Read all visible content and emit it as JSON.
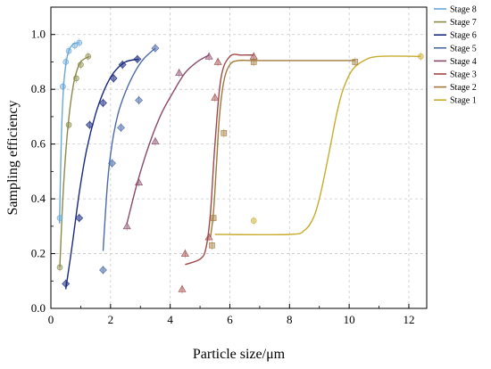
{
  "chart_data": {
    "type": "scatter",
    "xlabel": "Particle size/μm",
    "ylabel": "Sampling efficiency",
    "xlim": [
      0,
      12.6
    ],
    "ylim": [
      0,
      1.1
    ],
    "xticks": [
      0,
      2,
      4,
      6,
      8,
      10,
      12
    ],
    "yticks": [
      0.0,
      0.2,
      0.4,
      0.6,
      0.8,
      1.0
    ],
    "xtick_labels": [
      "0",
      "2",
      "4",
      "6",
      "8",
      "10",
      "12"
    ],
    "ytick_labels": [
      "0.0",
      "0.2",
      "0.4",
      "0.6",
      "0.8",
      "1.0"
    ],
    "grid": true,
    "legend_position": "top-right",
    "series": [
      {
        "name": "Stage 8",
        "color": "#6aa8d8",
        "marker": "circle",
        "x": [
          0.3,
          0.4,
          0.5,
          0.6,
          0.8,
          0.95
        ],
        "y": [
          0.33,
          0.81,
          0.9,
          0.94,
          0.96,
          0.97
        ],
        "curve_x": [
          0.29,
          0.35,
          0.42,
          0.5,
          0.6,
          0.75,
          0.95
        ],
        "curve_y": [
          0.31,
          0.62,
          0.8,
          0.89,
          0.94,
          0.965,
          0.97
        ]
      },
      {
        "name": "Stage 7",
        "color": "#8a8a4a",
        "marker": "circle",
        "x": [
          0.3,
          0.6,
          0.85,
          1.0,
          1.25
        ],
        "y": [
          0.15,
          0.67,
          0.84,
          0.89,
          0.92
        ],
        "curve_x": [
          0.3,
          0.4,
          0.52,
          0.65,
          0.8,
          1.0,
          1.3
        ],
        "curve_y": [
          0.15,
          0.4,
          0.6,
          0.74,
          0.84,
          0.9,
          0.92
        ]
      },
      {
        "name": "Stage 6",
        "color": "#1a2a80",
        "marker": "diamond",
        "x": [
          0.5,
          0.95,
          1.3,
          1.75,
          2.1,
          2.4,
          2.9
        ],
        "y": [
          0.09,
          0.33,
          0.67,
          0.75,
          0.84,
          0.89,
          0.91
        ],
        "curve_x": [
          0.5,
          0.7,
          0.95,
          1.2,
          1.5,
          1.8,
          2.1,
          2.5,
          2.95
        ],
        "curve_y": [
          0.07,
          0.22,
          0.42,
          0.58,
          0.71,
          0.8,
          0.86,
          0.9,
          0.91
        ]
      },
      {
        "name": "Stage 5",
        "color": "#4a6aa8",
        "marker": "diamond",
        "x": [
          1.75,
          2.05,
          2.35,
          2.95,
          3.5
        ],
        "y": [
          0.14,
          0.53,
          0.66,
          0.76,
          0.95
        ],
        "curve_x": [
          1.75,
          1.9,
          2.05,
          2.25,
          2.5,
          2.8,
          3.1,
          3.5
        ],
        "curve_y": [
          0.21,
          0.46,
          0.6,
          0.71,
          0.79,
          0.86,
          0.91,
          0.95
        ]
      },
      {
        "name": "Stage 4",
        "color": "#8a4a6a",
        "marker": "triangle",
        "x": [
          2.55,
          2.95,
          3.5,
          4.3,
          5.3
        ],
        "y": [
          0.3,
          0.46,
          0.61,
          0.86,
          0.92
        ],
        "curve_x": [
          2.55,
          2.9,
          3.3,
          3.7,
          4.1,
          4.5,
          4.9,
          5.3
        ],
        "curve_y": [
          0.31,
          0.46,
          0.6,
          0.71,
          0.79,
          0.86,
          0.9,
          0.925
        ]
      },
      {
        "name": "Stage 3",
        "color": "#a04848",
        "marker": "triangle",
        "x": [
          4.4,
          4.5,
          5.3,
          5.5,
          5.6,
          6.8
        ],
        "y": [
          0.07,
          0.2,
          0.26,
          0.77,
          0.9,
          0.92
        ],
        "curve_x": [
          4.5,
          5.0,
          5.2,
          5.35,
          5.5,
          5.7,
          6.0,
          6.4,
          6.8
        ],
        "curve_y": [
          0.16,
          0.18,
          0.22,
          0.35,
          0.6,
          0.84,
          0.92,
          0.925,
          0.925
        ]
      },
      {
        "name": "Stage 2",
        "color": "#a0783c",
        "marker": "square",
        "x": [
          5.4,
          5.45,
          5.8,
          6.8,
          10.2
        ],
        "y": [
          0.23,
          0.33,
          0.64,
          0.9,
          0.9
        ],
        "curve_x": [
          5.35,
          5.45,
          5.55,
          5.65,
          5.8,
          6.0,
          6.3,
          7.0,
          10.2
        ],
        "curve_y": [
          0.26,
          0.35,
          0.52,
          0.7,
          0.83,
          0.89,
          0.905,
          0.905,
          0.905
        ]
      },
      {
        "name": "Stage 1",
        "color": "#c8ac2e",
        "marker": "circle",
        "x": [
          6.8,
          12.4
        ],
        "y": [
          0.32,
          0.92
        ],
        "curve_x": [
          5.5,
          8.0,
          8.5,
          8.8,
          9.0,
          9.2,
          9.4,
          9.6,
          9.8,
          10.1,
          10.5,
          11.0,
          12.4
        ],
        "curve_y": [
          0.27,
          0.27,
          0.285,
          0.33,
          0.4,
          0.5,
          0.61,
          0.72,
          0.8,
          0.87,
          0.905,
          0.92,
          0.92
        ]
      }
    ]
  }
}
